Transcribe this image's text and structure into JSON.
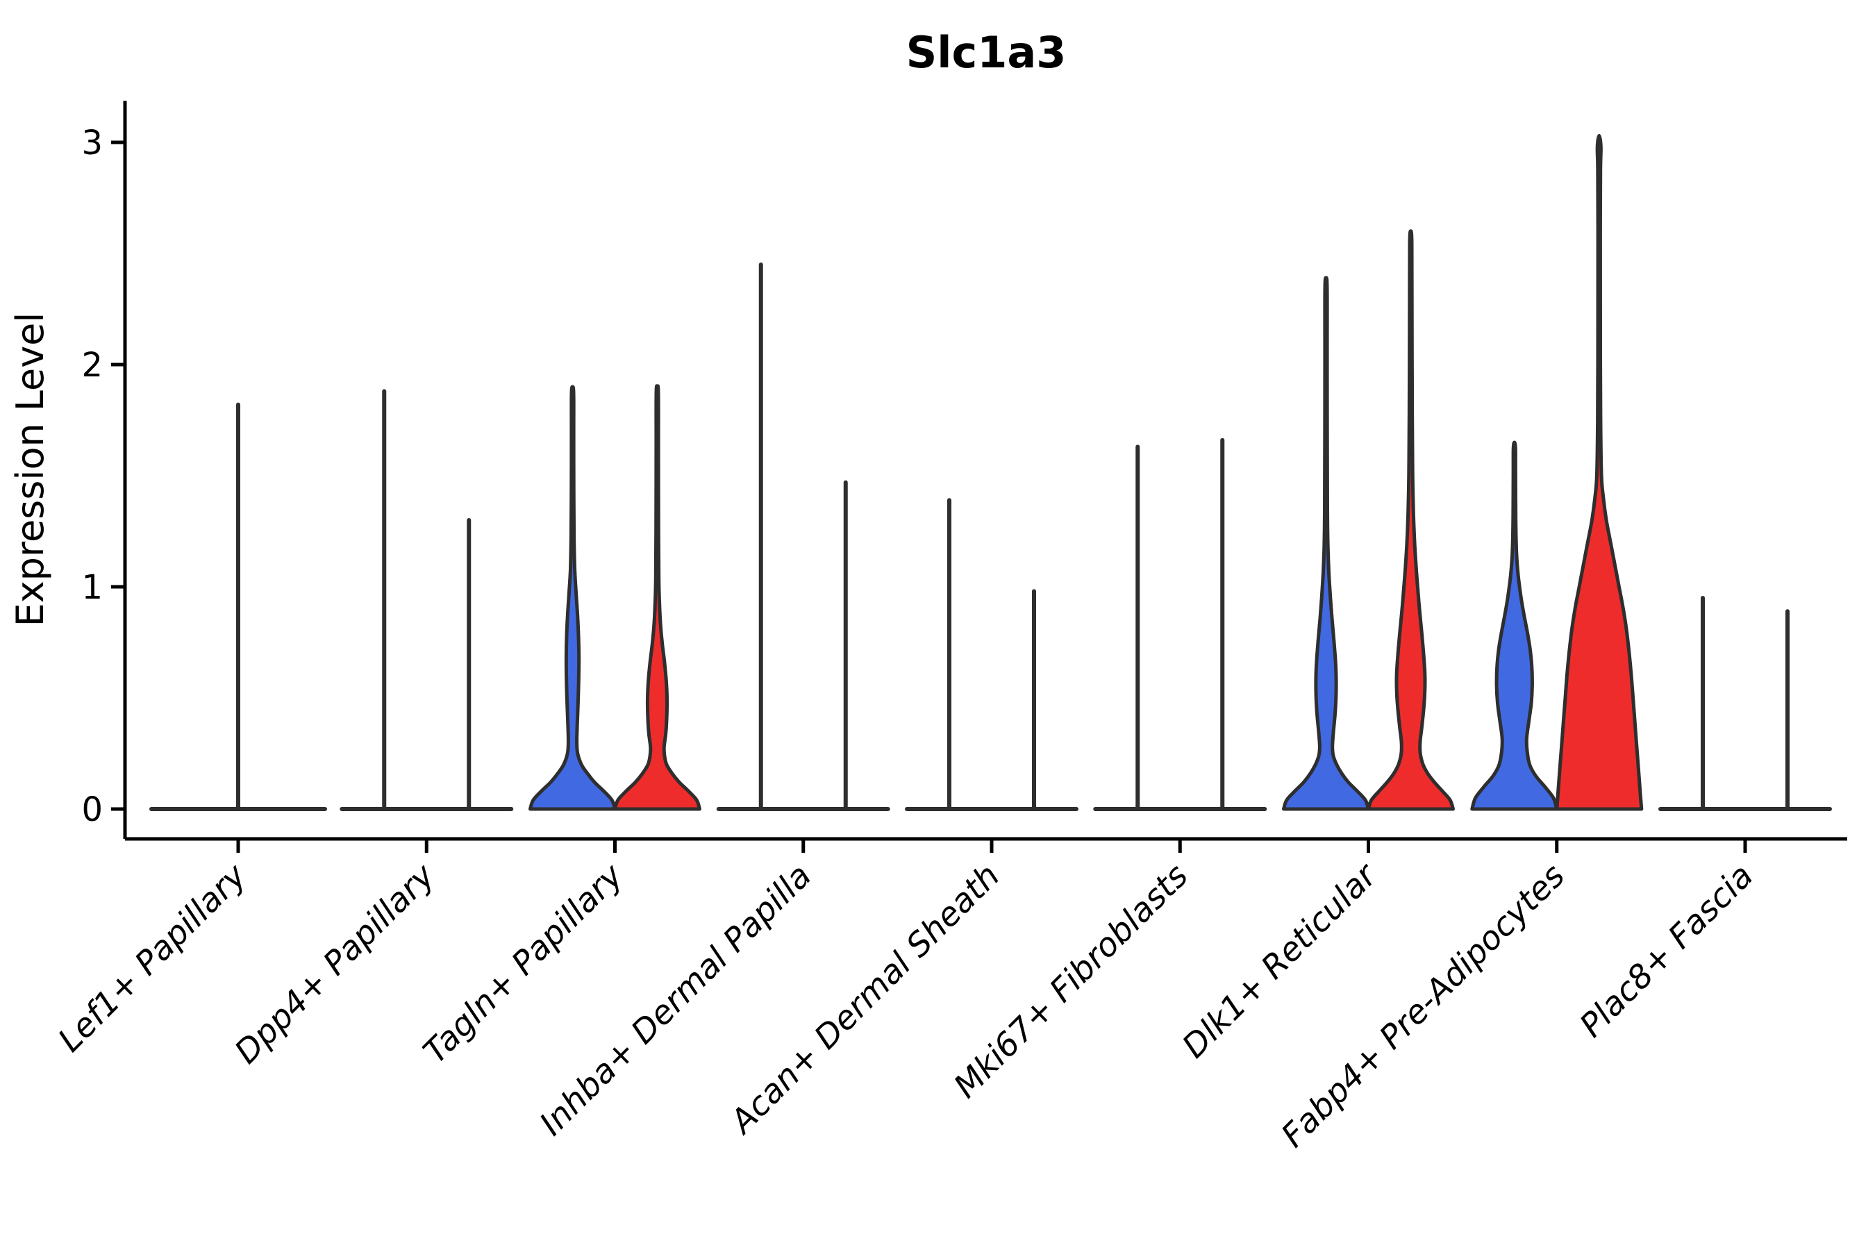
{
  "chart_data": {
    "type": "violin",
    "title": "Slc1a3",
    "y_axis": {
      "label": "Expression Level",
      "ticks": [
        0,
        1,
        2,
        3
      ],
      "range": [
        -0.09,
        3.2
      ]
    },
    "x_axis": {
      "categories": [
        "Lef1+ Papillary",
        "Dpp4+ Papillary",
        "Tagln+ Papillary",
        "Inhba+ Dermal Papilla",
        "Acan+ Dermal Sheath",
        "Mki67+ Fibroblasts",
        "Dlk1+ Reticular",
        "Fabp4+ Pre-Adipocytes",
        "Plac8+ Fascia"
      ]
    },
    "colors": {
      "blue": "#4169E1",
      "red": "#EE2C2C",
      "outline": "#2E2E2E",
      "axis": "#000000"
    },
    "groups": [
      {
        "category": "Lef1+ Papillary",
        "violins": [
          {
            "side": "center",
            "fill": "none",
            "shape": "flat-spike",
            "max": 1.82
          }
        ]
      },
      {
        "category": "Dpp4+ Papillary",
        "violins": [
          {
            "side": "left",
            "fill": "blue",
            "shape": "flat-spike",
            "max": 1.88
          },
          {
            "side": "right",
            "fill": "red",
            "shape": "flat-spike",
            "max": 1.3
          }
        ]
      },
      {
        "category": "Tagln+ Papillary",
        "violins": [
          {
            "side": "left",
            "fill": "blue",
            "shape": "body",
            "max": 1.9,
            "profile": [
              [
                0,
                1.0
              ],
              [
                0.04,
                0.93
              ],
              [
                0.08,
                0.74
              ],
              [
                0.12,
                0.52
              ],
              [
                0.16,
                0.35
              ],
              [
                0.2,
                0.21
              ],
              [
                0.25,
                0.12
              ],
              [
                0.3,
                0.1
              ],
              [
                0.38,
                0.11
              ],
              [
                0.48,
                0.13
              ],
              [
                0.58,
                0.145
              ],
              [
                0.68,
                0.15
              ],
              [
                0.78,
                0.14
              ],
              [
                0.88,
                0.115
              ],
              [
                0.98,
                0.08
              ],
              [
                1.08,
                0.05
              ],
              [
                1.22,
                0.035
              ],
              [
                1.45,
                0.028
              ],
              [
                1.7,
                0.026
              ],
              [
                1.87,
                0.025
              ],
              [
                1.9,
                0
              ]
            ]
          },
          {
            "side": "right",
            "fill": "red",
            "shape": "body",
            "max": 1.9,
            "profile": [
              [
                0,
                1.0
              ],
              [
                0.04,
                0.93
              ],
              [
                0.08,
                0.74
              ],
              [
                0.12,
                0.52
              ],
              [
                0.16,
                0.35
              ],
              [
                0.2,
                0.22
              ],
              [
                0.24,
                0.17
              ],
              [
                0.28,
                0.16
              ],
              [
                0.34,
                0.2
              ],
              [
                0.42,
                0.225
              ],
              [
                0.5,
                0.23
              ],
              [
                0.58,
                0.21
              ],
              [
                0.66,
                0.17
              ],
              [
                0.74,
                0.12
              ],
              [
                0.82,
                0.08
              ],
              [
                0.92,
                0.052
              ],
              [
                1.04,
                0.036
              ],
              [
                1.25,
                0.029
              ],
              [
                1.6,
                0.026
              ],
              [
                1.87,
                0.025
              ],
              [
                1.9,
                0
              ]
            ]
          }
        ]
      },
      {
        "category": "Inhba+ Dermal Papilla",
        "violins": [
          {
            "side": "left",
            "fill": "blue",
            "shape": "flat-spike",
            "max": 2.45
          },
          {
            "side": "right",
            "fill": "red",
            "shape": "flat-spike",
            "max": 1.47
          }
        ]
      },
      {
        "category": "Acan+ Dermal Sheath",
        "violins": [
          {
            "side": "left",
            "fill": "blue",
            "shape": "flat-spike",
            "max": 1.39
          },
          {
            "side": "right",
            "fill": "red",
            "shape": "flat-spike",
            "max": 0.98
          }
        ]
      },
      {
        "category": "Mki67+ Fibroblasts",
        "violins": [
          {
            "side": "left",
            "fill": "blue",
            "shape": "flat-spike",
            "max": 1.63
          },
          {
            "side": "right",
            "fill": "red",
            "shape": "flat-spike",
            "max": 1.66
          }
        ]
      },
      {
        "category": "Dlk1+ Reticular",
        "violins": [
          {
            "side": "left",
            "fill": "blue",
            "shape": "body",
            "max": 2.39,
            "profile": [
              [
                0,
                1.0
              ],
              [
                0.04,
                0.93
              ],
              [
                0.08,
                0.74
              ],
              [
                0.12,
                0.53
              ],
              [
                0.16,
                0.37
              ],
              [
                0.2,
                0.25
              ],
              [
                0.24,
                0.17
              ],
              [
                0.28,
                0.15
              ],
              [
                0.34,
                0.17
              ],
              [
                0.42,
                0.21
              ],
              [
                0.5,
                0.235
              ],
              [
                0.58,
                0.24
              ],
              [
                0.66,
                0.225
              ],
              [
                0.76,
                0.185
              ],
              [
                0.86,
                0.14
              ],
              [
                0.96,
                0.1
              ],
              [
                1.06,
                0.068
              ],
              [
                1.18,
                0.045
              ],
              [
                1.35,
                0.032
              ],
              [
                1.7,
                0.028
              ],
              [
                2.1,
                0.026
              ],
              [
                2.35,
                0.025
              ],
              [
                2.39,
                0
              ]
            ]
          },
          {
            "side": "right",
            "fill": "red",
            "shape": "body",
            "max": 2.6,
            "profile": [
              [
                0,
                1.0
              ],
              [
                0.04,
                0.93
              ],
              [
                0.08,
                0.75
              ],
              [
                0.12,
                0.56
              ],
              [
                0.16,
                0.4
              ],
              [
                0.2,
                0.29
              ],
              [
                0.25,
                0.225
              ],
              [
                0.3,
                0.22
              ],
              [
                0.36,
                0.255
              ],
              [
                0.44,
                0.3
              ],
              [
                0.52,
                0.33
              ],
              [
                0.6,
                0.335
              ],
              [
                0.68,
                0.31
              ],
              [
                0.78,
                0.265
              ],
              [
                0.88,
                0.215
              ],
              [
                0.98,
                0.17
              ],
              [
                1.08,
                0.13
              ],
              [
                1.2,
                0.09
              ],
              [
                1.35,
                0.06
              ],
              [
                1.55,
                0.042
              ],
              [
                1.9,
                0.032
              ],
              [
                2.25,
                0.028
              ],
              [
                2.55,
                0.025
              ],
              [
                2.6,
                0
              ]
            ]
          }
        ]
      },
      {
        "category": "Fabp4+ Pre-Adipocytes",
        "violins": [
          {
            "side": "left",
            "fill": "blue",
            "shape": "body",
            "max": 1.65,
            "profile": [
              [
                0,
                1.0
              ],
              [
                0.05,
                0.92
              ],
              [
                0.1,
                0.72
              ],
              [
                0.15,
                0.5
              ],
              [
                0.2,
                0.36
              ],
              [
                0.26,
                0.3
              ],
              [
                0.32,
                0.29
              ],
              [
                0.4,
                0.345
              ],
              [
                0.48,
                0.4
              ],
              [
                0.56,
                0.42
              ],
              [
                0.64,
                0.41
              ],
              [
                0.72,
                0.37
              ],
              [
                0.8,
                0.3
              ],
              [
                0.88,
                0.22
              ],
              [
                0.96,
                0.15
              ],
              [
                1.05,
                0.09
              ],
              [
                1.15,
                0.05
              ],
              [
                1.3,
                0.032
              ],
              [
                1.5,
                0.027
              ],
              [
                1.62,
                0.025
              ],
              [
                1.65,
                0
              ]
            ]
          },
          {
            "side": "right",
            "fill": "red",
            "shape": "body",
            "max": 3.03,
            "profile": [
              [
                0,
                1.0
              ],
              [
                0.1,
                0.96
              ],
              [
                0.2,
                0.92
              ],
              [
                0.3,
                0.88
              ],
              [
                0.4,
                0.84
              ],
              [
                0.5,
                0.8
              ],
              [
                0.6,
                0.76
              ],
              [
                0.7,
                0.71
              ],
              [
                0.8,
                0.65
              ],
              [
                0.9,
                0.57
              ],
              [
                1.0,
                0.47
              ],
              [
                1.1,
                0.37
              ],
              [
                1.2,
                0.27
              ],
              [
                1.3,
                0.17
              ],
              [
                1.4,
                0.1
              ],
              [
                1.5,
                0.055
              ],
              [
                1.75,
                0.035
              ],
              [
                2.2,
                0.028
              ],
              [
                2.6,
                0.027
              ],
              [
                2.88,
                0.032
              ],
              [
                2.98,
                0.042
              ],
              [
                3.03,
                0
              ]
            ]
          }
        ]
      },
      {
        "category": "Plac8+ Fascia",
        "violins": [
          {
            "side": "left",
            "fill": "blue",
            "shape": "flat-spike",
            "max": 0.95
          },
          {
            "side": "right",
            "fill": "red",
            "shape": "flat-spike",
            "max": 0.89
          }
        ]
      }
    ]
  }
}
